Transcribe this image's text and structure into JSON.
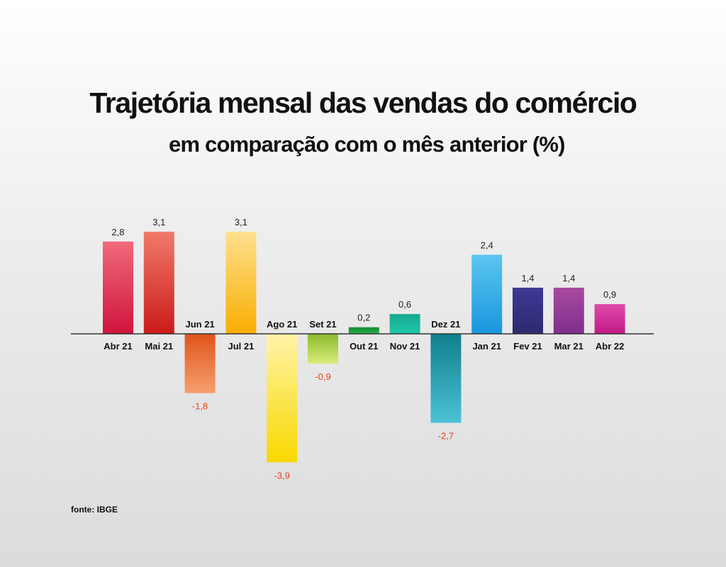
{
  "title": "Trajetória mensal  das vendas do comércio",
  "subtitle": "em comparação com o mês anterior (%)",
  "source": "fonte: IBGE",
  "chart_data": {
    "type": "bar",
    "title": "Trajetória mensal  das vendas do comércio",
    "subtitle": "em comparação com o mês anterior (%)",
    "categories": [
      "Abr 21",
      "Mai 21",
      "Jun 21",
      "Jul 21",
      "Ago 21",
      "Set 21",
      "Out 21",
      "Nov 21",
      "Dez 21",
      "Jan 21",
      "Fev 21",
      "Mar 21",
      "Abr 22"
    ],
    "values": [
      2.8,
      3.1,
      -1.8,
      3.1,
      -3.9,
      -0.9,
      0.2,
      0.6,
      -2.7,
      2.4,
      1.4,
      1.4,
      0.9
    ],
    "value_labels": [
      "2,8",
      "3,1",
      "-1,8",
      "3,1",
      "-3,9",
      "-0,9",
      "0,2",
      "0,6",
      "-2,7",
      "2,4",
      "1,4",
      "1,4",
      "0,9"
    ],
    "colors": [
      [
        "#f06a7a",
        "#d0143c"
      ],
      [
        "#f07a6a",
        "#cc1a1a"
      ],
      [
        "#e0541a",
        "#f6a070"
      ],
      [
        "#ffe090",
        "#f8ae00"
      ],
      [
        "#fff4a8",
        "#f8d800"
      ],
      [
        "#8aba2a",
        "#d8ec7a"
      ],
      [
        "#178a34",
        "#27b14a"
      ],
      [
        "#16a88f",
        "#1cc8a8"
      ],
      [
        "#0f7f8c",
        "#4cc2d6"
      ],
      [
        "#5cc6ef",
        "#1996de"
      ],
      [
        "#3e3893",
        "#2d2a70"
      ],
      [
        "#a84aa0",
        "#7e2f8c"
      ],
      [
        "#e04aaa",
        "#c21a86"
      ]
    ],
    "negative_label_color": "#e8441a",
    "ylabel": "",
    "xlabel": "",
    "grid": false,
    "legend": "none"
  }
}
